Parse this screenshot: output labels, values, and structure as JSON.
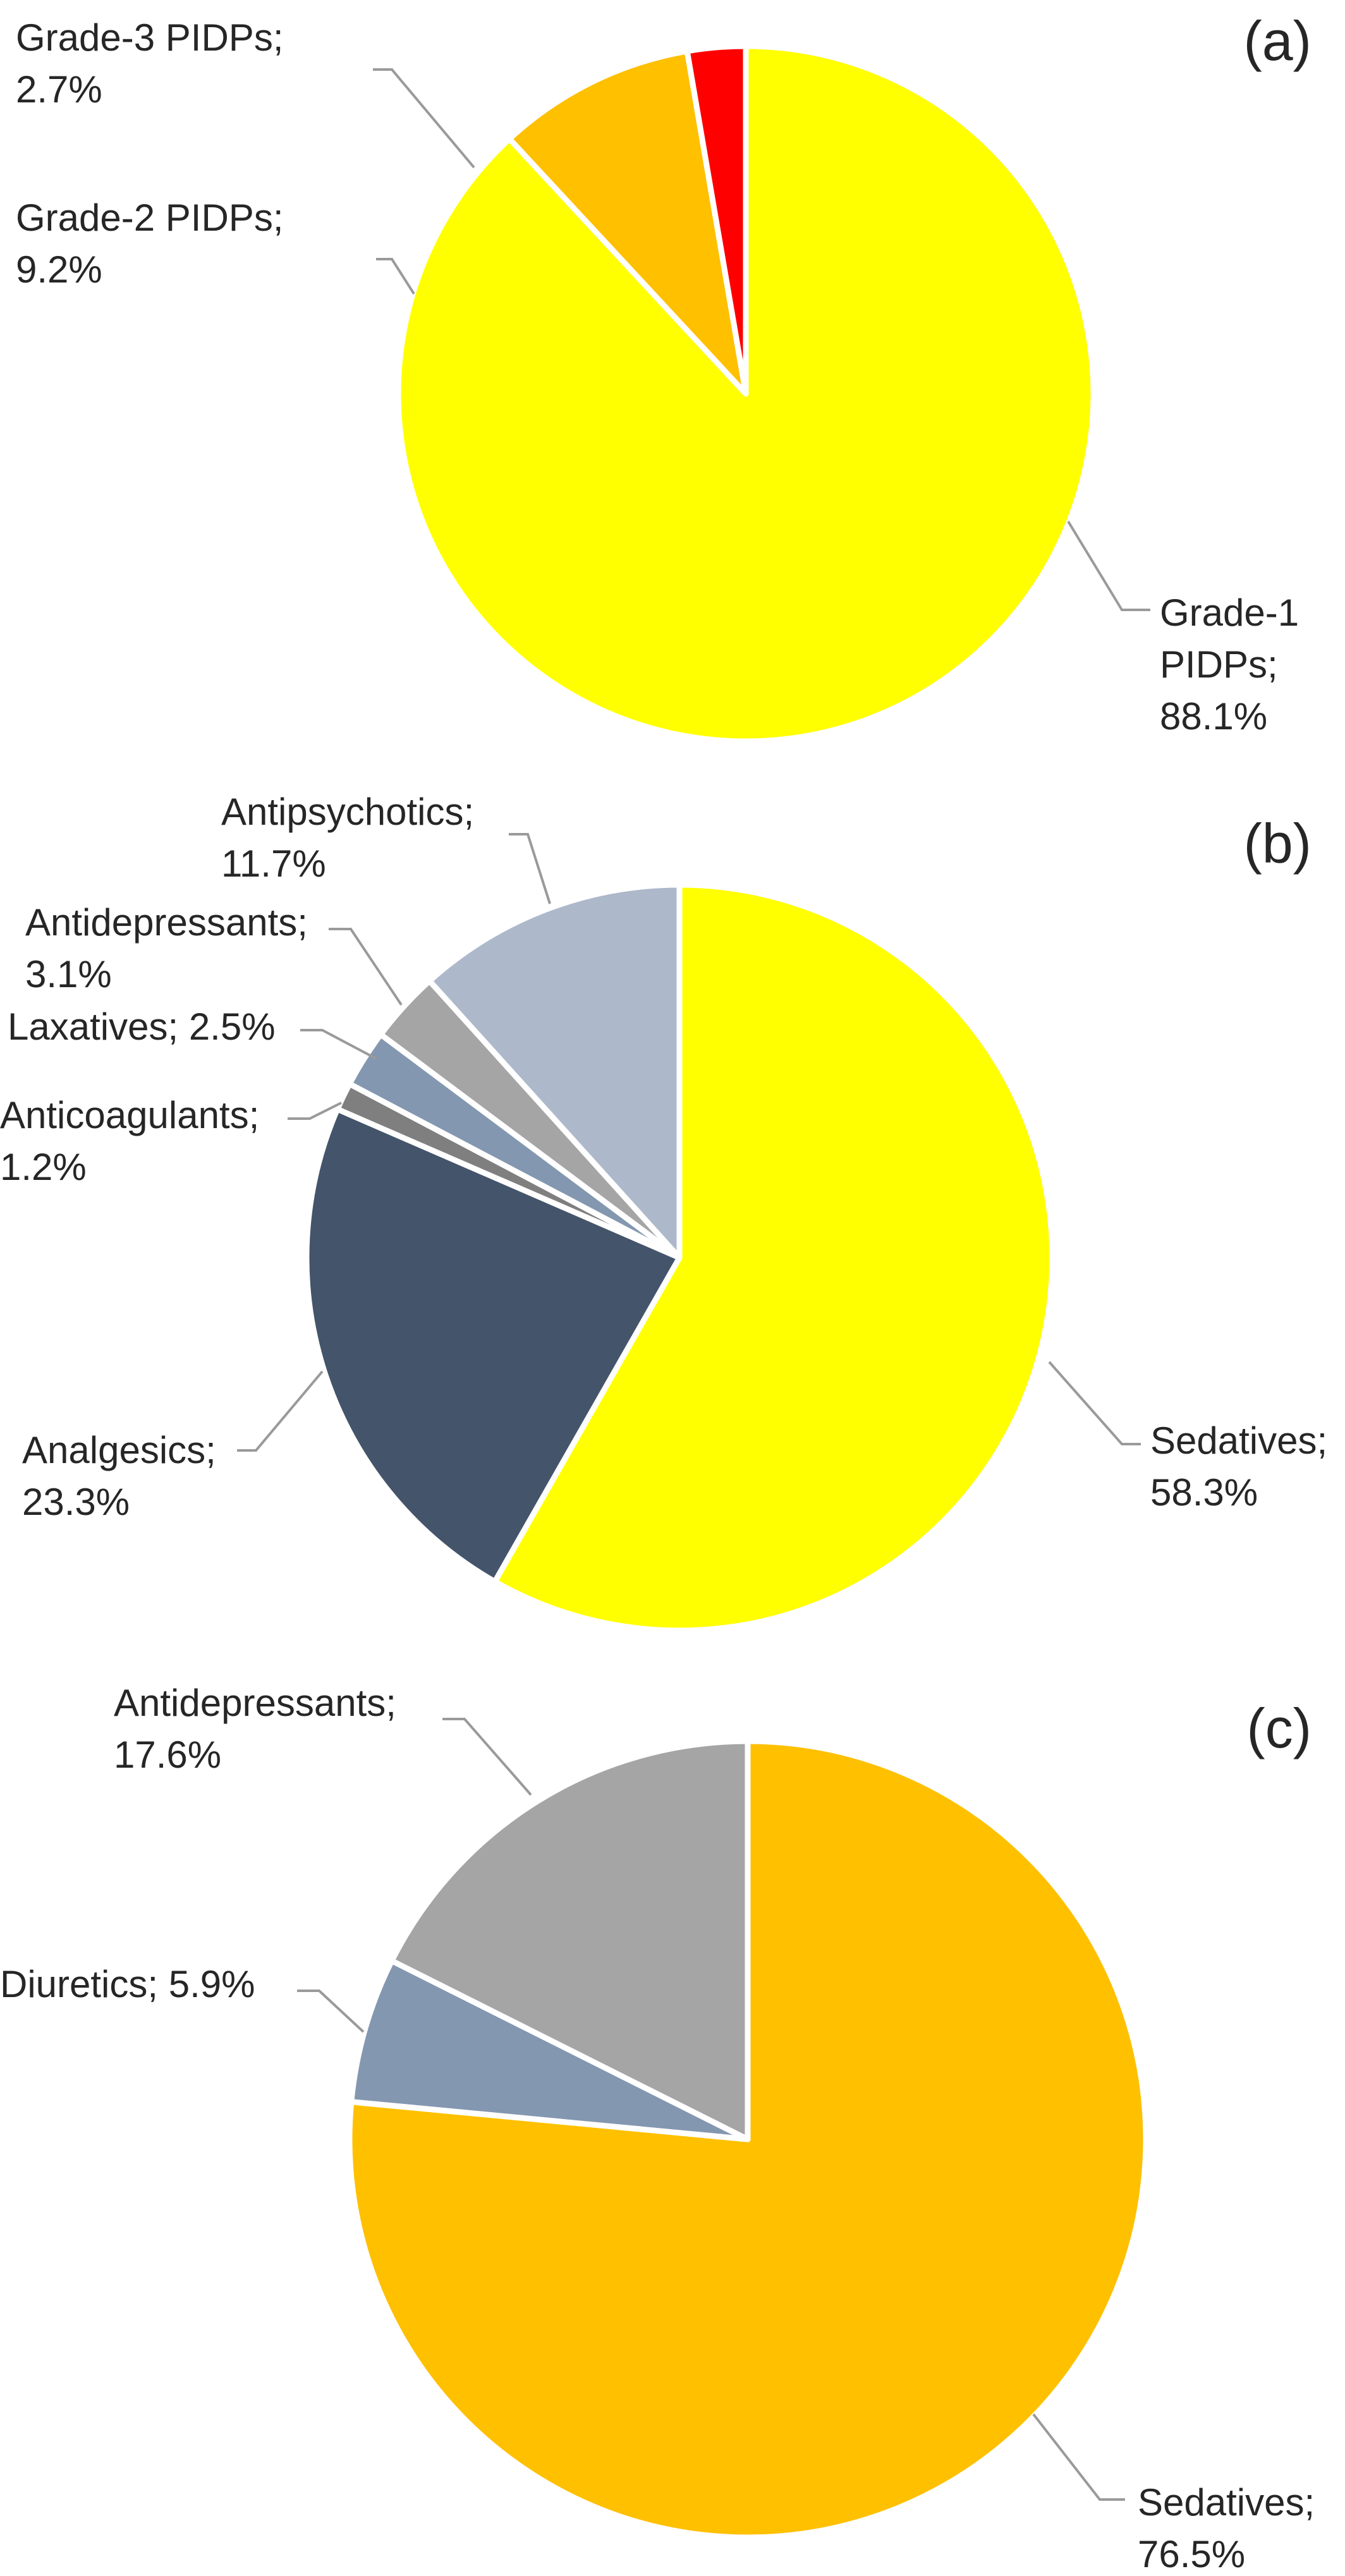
{
  "chart_data": [
    {
      "type": "pie",
      "panel_label": "(a)",
      "slices": [
        {
          "label": "Grade-1 PIDPs;",
          "value": 88.1,
          "value_label": "88.1%",
          "color": "#FFFF00"
        },
        {
          "label": "Grade-2 PIDPs;",
          "value": 9.2,
          "value_label": "9.2%",
          "color": "#FFC000"
        },
        {
          "label": "Grade-3 PIDPs;",
          "value": 2.7,
          "value_label": "2.7%",
          "color": "#FF0000"
        }
      ]
    },
    {
      "type": "pie",
      "panel_label": "(b)",
      "slices": [
        {
          "label": "Sedatives;",
          "value": 58.3,
          "value_label": "58.3%",
          "color": "#FFFF00"
        },
        {
          "label": "Analgesics;",
          "value": 23.3,
          "value_label": "23.3%",
          "color": "#44546A"
        },
        {
          "label": "Anticoagulants;",
          "value": 1.2,
          "value_label": "1.2%",
          "color": "#7F7F7F"
        },
        {
          "label": "Laxatives;",
          "value": 2.5,
          "value_label": "2.5%",
          "color": "#8497B0"
        },
        {
          "label": "Antidepressants;",
          "value": 3.1,
          "value_label": "3.1%",
          "color": "#A5A5A5"
        },
        {
          "label": "Antipsychotics;",
          "value": 11.7,
          "value_label": "11.7%",
          "color": "#ADB9CA"
        }
      ]
    },
    {
      "type": "pie",
      "panel_label": "(c)",
      "slices": [
        {
          "label": "Sedatives;",
          "value": 76.5,
          "value_label": "76.5%",
          "color": "#FFC000"
        },
        {
          "label": "Diuretics;",
          "value": 5.9,
          "value_label": "5.9%",
          "color": "#8497B0"
        },
        {
          "label": "Antidepressants;",
          "value": 17.6,
          "value_label": "17.6%",
          "color": "#A5A5A5"
        }
      ]
    }
  ]
}
